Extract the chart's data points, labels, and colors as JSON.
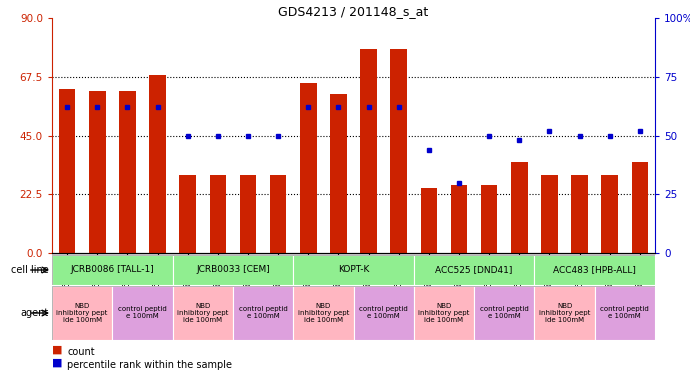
{
  "title": "GDS4213 / 201148_s_at",
  "samples": [
    "GSM518496",
    "GSM518497",
    "GSM518494",
    "GSM518495",
    "GSM542395",
    "GSM542396",
    "GSM542393",
    "GSM542394",
    "GSM542399",
    "GSM542400",
    "GSM542397",
    "GSM542398",
    "GSM542403",
    "GSM542404",
    "GSM542401",
    "GSM542402",
    "GSM542407",
    "GSM542408",
    "GSM542405",
    "GSM542406"
  ],
  "bar_values": [
    63,
    62,
    62,
    68,
    30,
    30,
    30,
    30,
    65,
    61,
    78,
    78,
    25,
    26,
    26,
    35,
    30,
    30,
    30,
    35
  ],
  "dot_values_pct": [
    62,
    62,
    62,
    62,
    50,
    50,
    50,
    50,
    62,
    62,
    62,
    62,
    44,
    30,
    50,
    48,
    52,
    50,
    50,
    52
  ],
  "left_ylim": [
    0,
    90
  ],
  "right_ylim": [
    0,
    100
  ],
  "left_yticks": [
    0,
    22.5,
    45,
    67.5,
    90
  ],
  "right_yticks": [
    0,
    25,
    50,
    75,
    100
  ],
  "right_yticklabels": [
    "0",
    "25",
    "50",
    "75",
    "100%"
  ],
  "bar_color": "#CC2200",
  "dot_color": "#0000CC",
  "cell_lines": [
    {
      "label": "JCRB0086 [TALL-1]",
      "start": 0,
      "end": 4,
      "color": "#90EE90"
    },
    {
      "label": "JCRB0033 [CEM]",
      "start": 4,
      "end": 8,
      "color": "#90EE90"
    },
    {
      "label": "KOPT-K",
      "start": 8,
      "end": 12,
      "color": "#90EE90"
    },
    {
      "label": "ACC525 [DND41]",
      "start": 12,
      "end": 16,
      "color": "#90EE90"
    },
    {
      "label": "ACC483 [HPB-ALL]",
      "start": 16,
      "end": 20,
      "color": "#90EE90"
    }
  ],
  "agents": [
    {
      "label": "NBD\ninhibitory pept\nide 100mM",
      "start": 0,
      "end": 2,
      "color": "#FFB6C1"
    },
    {
      "label": "control peptid\ne 100mM",
      "start": 2,
      "end": 4,
      "color": "#DDA0DD"
    },
    {
      "label": "NBD\ninhibitory pept\nide 100mM",
      "start": 4,
      "end": 6,
      "color": "#FFB6C1"
    },
    {
      "label": "control peptid\ne 100mM",
      "start": 6,
      "end": 8,
      "color": "#DDA0DD"
    },
    {
      "label": "NBD\ninhibitory pept\nide 100mM",
      "start": 8,
      "end": 10,
      "color": "#FFB6C1"
    },
    {
      "label": "control peptid\ne 100mM",
      "start": 10,
      "end": 12,
      "color": "#DDA0DD"
    },
    {
      "label": "NBD\ninhibitory pept\nide 100mM",
      "start": 12,
      "end": 14,
      "color": "#FFB6C1"
    },
    {
      "label": "control peptid\ne 100mM",
      "start": 14,
      "end": 16,
      "color": "#DDA0DD"
    },
    {
      "label": "NBD\ninhibitory pept\nide 100mM",
      "start": 16,
      "end": 18,
      "color": "#FFB6C1"
    },
    {
      "label": "control peptid\ne 100mM",
      "start": 18,
      "end": 20,
      "color": "#DDA0DD"
    }
  ],
  "background_color": "#FFFFFF",
  "grid_yticks": [
    22.5,
    45.0,
    67.5
  ],
  "xtick_bg": "#D3D3D3"
}
